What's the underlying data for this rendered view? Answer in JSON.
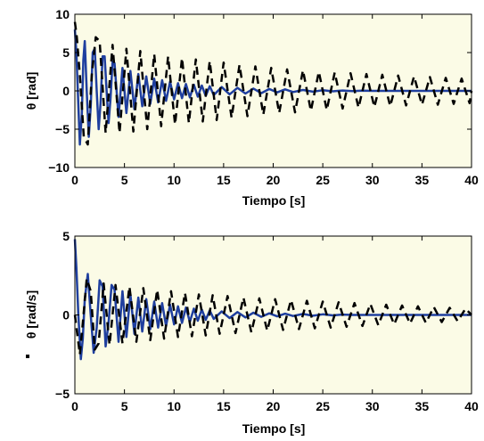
{
  "colors": {
    "background": "#ffffff",
    "axes_background": "#fbfbe6",
    "solid_series": "#1f3f9f",
    "dashed_series": "#000000"
  },
  "chart_data": [
    {
      "type": "line",
      "xlabel": "Tiempo [s]",
      "ylabel": "θ [rad]",
      "xlim": [
        0,
        40
      ],
      "ylim": [
        -10,
        10
      ],
      "xticks": [
        "0",
        "5",
        "10",
        "15",
        "20",
        "25",
        "30",
        "35",
        "40"
      ],
      "yticks": [
        "−10",
        "−5",
        "0",
        "5",
        "10"
      ],
      "grid": false,
      "series": [
        {
          "style": "solid",
          "color": "#1f3f9f",
          "x": [
            0,
            0.15,
            0.3,
            0.5,
            0.7,
            0.85,
            1.0,
            1.2,
            1.4,
            1.6,
            1.8,
            2.0,
            2.2,
            2.4,
            2.6,
            2.8,
            3.0,
            3.2,
            3.4,
            3.6,
            3.8,
            4.0,
            4.4,
            4.8,
            5.2,
            5.6,
            6.0,
            6.4,
            6.8,
            7.2,
            7.6,
            8.0,
            8.4,
            8.8,
            9.2,
            9.6,
            10.0,
            10.4,
            10.8,
            11.2,
            11.6,
            12.0,
            12.4,
            12.8,
            13.2,
            13.6,
            14.0,
            14.8,
            15.6,
            16.4,
            17.2,
            18.0,
            18.8,
            19.6,
            20.4,
            21.2,
            22.0,
            23.0,
            24.0,
            25.0,
            26.0,
            27.0,
            28.0,
            29.0,
            30.0,
            31.0,
            32.0,
            33.0,
            34.0,
            35.0,
            36.0,
            37.0,
            38.0,
            39.0,
            40.0
          ],
          "y": [
            8,
            5,
            0,
            -7,
            -3,
            4,
            6.5,
            0,
            -6,
            -2,
            5,
            5.5,
            0,
            -5,
            -1.5,
            4.5,
            4.5,
            0,
            -4.2,
            -1,
            3.8,
            3.6,
            -3.4,
            3,
            -2.9,
            2.6,
            -2.4,
            2.2,
            -2,
            1.9,
            -1.7,
            1.6,
            -1.5,
            1.4,
            -1.3,
            1.2,
            -1.1,
            1,
            -0.95,
            0.9,
            -0.85,
            0.8,
            -0.75,
            0.7,
            -0.65,
            0.6,
            -0.55,
            0.5,
            -0.45,
            0.4,
            -0.35,
            0.3,
            -0.3,
            0.25,
            -0.2,
            0.2,
            -0.15,
            0.12,
            -0.1,
            0.08,
            -0.06,
            0.05,
            -0.04,
            0.03,
            0,
            0,
            0,
            0,
            0,
            0,
            0,
            0,
            0,
            0,
            0
          ]
        },
        {
          "style": "dashed",
          "color": "#000000",
          "x": [
            0,
            0.2,
            0.5,
            0.9,
            1.3,
            1.7,
            2.1,
            2.5,
            3.1,
            3.8,
            4.5,
            5.2,
            5.9,
            6.6,
            7.3,
            8.0,
            8.7,
            9.4,
            10.1,
            10.8,
            11.5,
            12.2,
            12.9,
            13.6,
            14.3,
            15.0,
            15.8,
            16.6,
            17.4,
            18.2,
            19.0,
            19.8,
            20.6,
            21.4,
            22.2,
            23.0,
            23.8,
            24.6,
            25.4,
            26.2,
            27.0,
            27.8,
            28.6,
            29.4,
            30.2,
            31.0,
            31.8,
            32.6,
            33.4,
            34.2,
            35.0,
            35.8,
            36.6,
            37.4,
            38.2,
            39.0,
            39.8,
            40.0
          ],
          "y": [
            9,
            7,
            2,
            -6,
            -7,
            2,
            7,
            6.5,
            -5.5,
            6,
            -5.5,
            5.5,
            -5.3,
            5.2,
            -5,
            4.8,
            -4.6,
            4.5,
            -4.4,
            4.3,
            -4.2,
            4.1,
            -4,
            3.9,
            -3.8,
            3.7,
            -3.5,
            3.4,
            -3.3,
            3.2,
            -3.1,
            3,
            -2.9,
            2.8,
            -2.8,
            2.7,
            -2.6,
            2.5,
            -2.5,
            2.4,
            -2.3,
            2.3,
            -2.2,
            2.2,
            -2.1,
            2.1,
            -2,
            2,
            -1.9,
            1.9,
            -1.8,
            1.8,
            -1.8,
            1.7,
            -1.7,
            1.6,
            -1.6,
            0
          ]
        }
      ]
    },
    {
      "type": "line",
      "xlabel": "Tiempo [s]",
      "ylabel": "θ [rad/s]",
      "xlim": [
        0,
        40
      ],
      "ylim": [
        -5,
        5
      ],
      "xticks": [
        "0",
        "5",
        "10",
        "15",
        "20",
        "25",
        "30",
        "35",
        "40"
      ],
      "yticks": [
        "−5",
        "0",
        "5"
      ],
      "grid": false,
      "series": [
        {
          "style": "solid",
          "color": "#1f3f9f",
          "x": [
            0,
            0.15,
            0.35,
            0.6,
            0.8,
            1.0,
            1.3,
            1.6,
            1.9,
            2.2,
            2.5,
            2.8,
            3.1,
            3.4,
            3.7,
            4.0,
            4.4,
            4.8,
            5.2,
            5.6,
            6.0,
            6.4,
            6.8,
            7.2,
            7.6,
            8.0,
            8.4,
            8.8,
            9.2,
            9.6,
            10.0,
            10.4,
            10.8,
            11.2,
            11.6,
            12.0,
            12.4,
            12.8,
            13.2,
            13.6,
            14.0,
            14.8,
            15.6,
            16.4,
            17.2,
            18.0,
            18.8,
            19.6,
            20.4,
            21.2,
            22.0,
            23.0,
            24.0,
            25.0,
            26.0,
            27.0,
            28.0,
            29.0,
            30.0,
            32.0,
            34.0,
            36.0,
            38.0,
            40.0
          ],
          "y": [
            4.8,
            3,
            0,
            -2.8,
            -1.5,
            1,
            2.6,
            0,
            -2.4,
            -0.8,
            2.2,
            1.8,
            -2,
            -0.5,
            1.9,
            1.6,
            -1.7,
            1.5,
            -1.4,
            1.3,
            -1.2,
            1.1,
            -1.05,
            1,
            -0.9,
            0.85,
            -0.8,
            0.75,
            -0.7,
            0.65,
            -0.6,
            0.55,
            -0.5,
            0.47,
            -0.44,
            0.4,
            -0.37,
            0.34,
            -0.31,
            0.28,
            -0.25,
            0.22,
            -0.2,
            0.18,
            -0.16,
            0.14,
            -0.12,
            0.1,
            -0.09,
            0.08,
            -0.07,
            0.06,
            -0.05,
            0.04,
            -0.03,
            0.02,
            0,
            0,
            0,
            0,
            0,
            0,
            0,
            0
          ]
        },
        {
          "style": "dashed",
          "color": "#000000",
          "x": [
            0,
            0.2,
            0.5,
            0.8,
            1.2,
            1.6,
            2.0,
            2.4,
            2.9,
            3.5,
            4.1,
            4.8,
            5.5,
            6.2,
            6.9,
            7.6,
            8.3,
            9.0,
            9.7,
            10.4,
            11.1,
            11.8,
            12.5,
            13.2,
            13.9,
            14.6,
            15.4,
            16.2,
            17.0,
            17.8,
            18.6,
            19.4,
            20.2,
            21.0,
            21.8,
            22.6,
            23.4,
            24.2,
            25.0,
            25.8,
            26.6,
            27.4,
            28.2,
            29.0,
            29.8,
            30.6,
            31.4,
            32.2,
            33.0,
            33.8,
            34.6,
            35.4,
            36.2,
            37.0,
            37.8,
            38.6,
            39.4,
            40.0
          ],
          "y": [
            0,
            -1,
            -2.5,
            -0.5,
            2.3,
            1.5,
            -2.2,
            -1.8,
            2,
            -1.9,
            1.9,
            -1.8,
            1.8,
            -1.7,
            1.7,
            -1.6,
            1.6,
            -1.5,
            1.5,
            -1.4,
            1.4,
            -1.35,
            1.3,
            -1.3,
            1.25,
            -1.2,
            1.2,
            -1.15,
            1.1,
            -1.1,
            1.05,
            -1,
            1,
            -0.95,
            0.95,
            -0.9,
            0.9,
            -0.85,
            0.85,
            -0.8,
            0.8,
            -0.75,
            0.75,
            -0.7,
            0.7,
            -0.65,
            0.65,
            -0.6,
            0.6,
            -0.55,
            0.55,
            -0.5,
            0.5,
            -0.45,
            0.45,
            -0.4,
            0.4,
            0
          ]
        }
      ]
    }
  ]
}
